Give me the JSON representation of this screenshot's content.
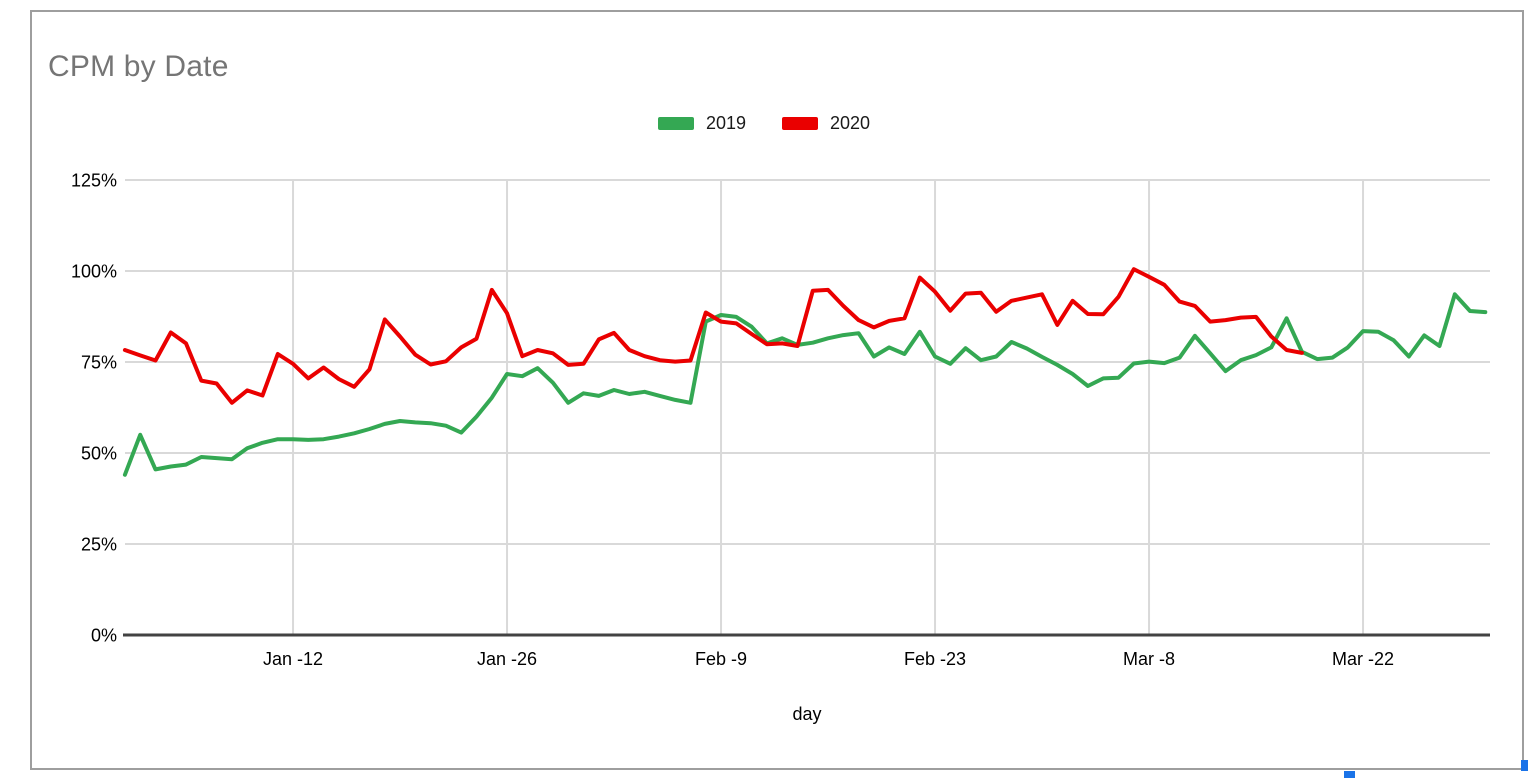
{
  "chart": {
    "title": "CPM by Date",
    "title_color": "#757575"
  },
  "selection": {
    "handle_color": "#1a73e8",
    "border_color": "#9e9e9e"
  },
  "chart_data": {
    "type": "line",
    "title": "CPM by Date",
    "xlabel": "day",
    "ylabel": "",
    "ylim": [
      0,
      125
    ],
    "grid": true,
    "legend_position": "top",
    "axis_color": "#424242",
    "gridline_color": "#d9d9d9",
    "tick_label_color": "#000000",
    "y_ticks": [
      {
        "value": 0,
        "label": "0%"
      },
      {
        "value": 25,
        "label": "25%"
      },
      {
        "value": 50,
        "label": "50%"
      },
      {
        "value": 75,
        "label": "75%"
      },
      {
        "value": 100,
        "label": "100%"
      },
      {
        "value": 125,
        "label": "125%"
      }
    ],
    "x_ticks": [
      {
        "day": 12,
        "label": "Jan -12"
      },
      {
        "day": 26,
        "label": "Jan -26"
      },
      {
        "day": 40,
        "label": "Feb -9"
      },
      {
        "day": 54,
        "label": "Feb -23"
      },
      {
        "day": 68,
        "label": "Mar -8"
      },
      {
        "day": 82,
        "label": "Mar -22"
      }
    ],
    "x_start_day": 1,
    "series": [
      {
        "name": "2019",
        "color": "#34a853",
        "start_day": 1,
        "values": [
          44,
          55,
          45.5,
          46.3,
          46.8,
          48.9,
          48.6,
          48.3,
          51.3,
          52.8,
          53.8,
          53.8,
          53.6,
          53.8,
          54.5,
          55.4,
          56.6,
          58,
          58.8,
          58.4,
          58.2,
          57.5,
          55.6,
          60,
          65.2,
          71.7,
          71.1,
          73.3,
          69.3,
          63.8,
          66.4,
          65.7,
          67.3,
          66.2,
          66.8,
          65.7,
          64.6,
          63.8,
          86.1,
          87.9,
          87.4,
          84.7,
          80.1,
          81.5,
          79.7,
          80.3,
          81.5,
          82.4,
          82.9,
          76.5,
          79,
          77.2,
          83.3,
          76.5,
          74.5,
          78.8,
          75.5,
          76.5,
          80.5,
          78.7,
          76.4,
          74.2,
          71.7,
          68.4,
          70.5,
          70.7,
          74.6,
          75.1,
          74.7,
          76.2,
          82.2,
          77.4,
          72.5,
          75.5,
          76.9,
          79,
          87,
          77.8,
          75.8,
          76.2,
          79,
          83.5,
          83.3,
          81,
          76.5,
          82.3,
          79.4,
          93.6,
          89,
          88.7
        ]
      },
      {
        "name": "2020",
        "color": "#ea0000",
        "start_day": 1,
        "values": [
          78.3,
          76.8,
          75.4,
          83.1,
          80.1,
          69.9,
          69.1,
          63.8,
          67.2,
          65.8,
          77.2,
          74.5,
          70.5,
          73.5,
          70.3,
          68.2,
          73,
          86.7,
          82,
          77,
          74.3,
          75.2,
          79,
          81.4,
          94.8,
          88.4,
          76.6,
          78.3,
          77.4,
          74.2,
          74.5,
          81.2,
          83,
          78.3,
          76.6,
          75.5,
          75.1,
          75.4,
          88.6,
          86.1,
          85.6,
          82.7,
          79.9,
          80.1,
          79.4,
          94.6,
          94.8,
          90.4,
          86.5,
          84.5,
          86.3,
          87,
          98.2,
          94.3,
          89.1,
          93.8,
          94,
          88.8,
          91.8,
          92.7,
          93.6,
          85.2,
          91.8,
          88.2,
          88.1,
          92.9,
          100.5,
          98.4,
          96.2,
          91.6,
          90.4,
          86.1,
          86.5,
          87.2,
          87.4,
          82,
          78.3,
          77.5
        ]
      }
    ]
  }
}
